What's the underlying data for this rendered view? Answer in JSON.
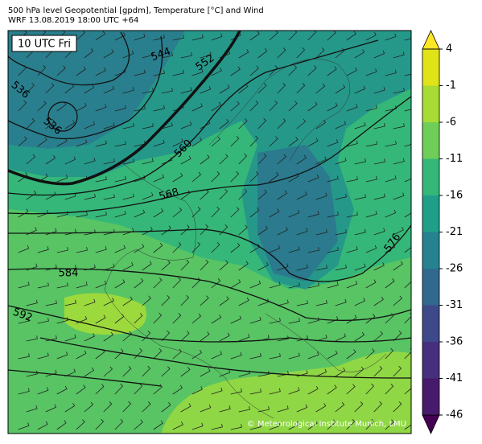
{
  "header": {
    "line1": "500 hPa level Geopotential [gpdm], Temperature [°C] and Wind",
    "line2": "WRF 13.08.2019 18:00 UTC +64"
  },
  "time_label": "10 UTC Fri",
  "contour_labels": [
    "544",
    "552",
    "536",
    "536",
    "560",
    "568",
    "576",
    "584",
    "592"
  ],
  "colorbar": {
    "ticks": [
      4,
      -1,
      -6,
      -11,
      -16,
      -21,
      -26,
      -31,
      -36,
      -41,
      -46
    ],
    "colors": [
      "#440154",
      "#481a6c",
      "#472f7d",
      "#3e4989",
      "#31688e",
      "#26828e",
      "#1f9e89",
      "#35b779",
      "#6ece58",
      "#a8db34",
      "#dfe318",
      "#fde725"
    ]
  },
  "credit": "© Meteorological Institute Munich, LMU"
}
